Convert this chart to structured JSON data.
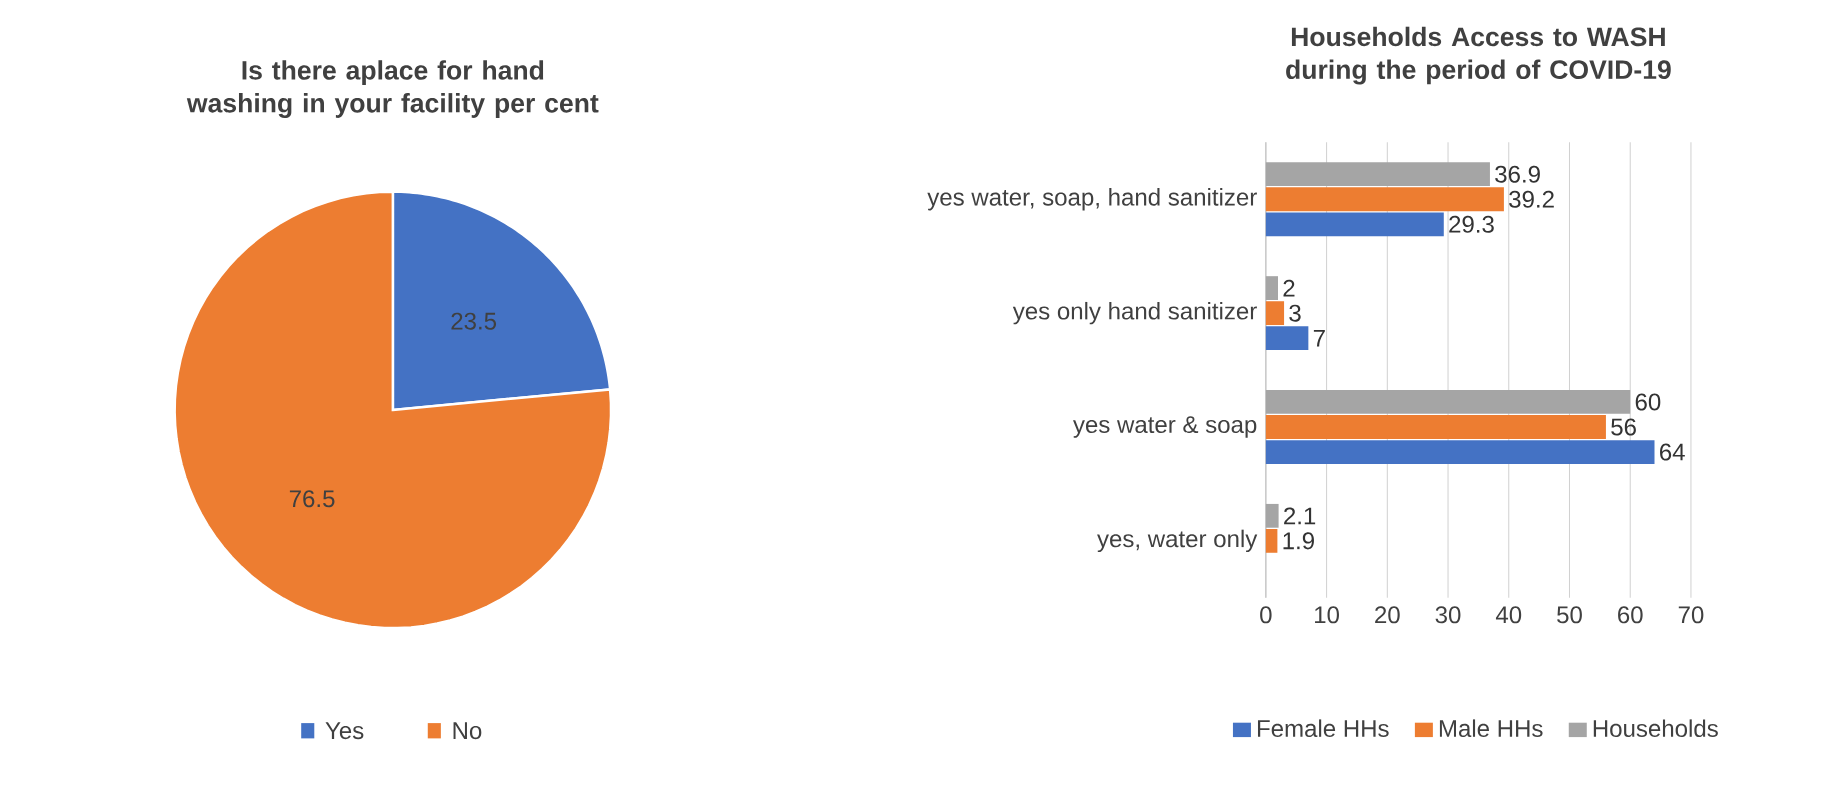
{
  "chart_data": [
    {
      "type": "pie",
      "title": "Is there aplace for hand washing in your facility per cent",
      "categories": [
        "Yes",
        "No"
      ],
      "values": [
        23.5,
        76.5
      ],
      "colors": [
        "#4472c4",
        "#ed7d31"
      ],
      "data_labels": true,
      "legend": "bottom"
    },
    {
      "type": "bar",
      "orientation": "horizontal",
      "title": "Households Access to WASH during the period of COVID-19",
      "categories": [
        "yes water, soap, hand sanitizer",
        "yes only hand sanitizer",
        "yes water & soap",
        "yes, water only"
      ],
      "series": [
        {
          "name": "Female HHs",
          "color": "#4472c4",
          "values": [
            29.3,
            7,
            64,
            null
          ]
        },
        {
          "name": "Male HHs",
          "color": "#ed7d31",
          "values": [
            39.2,
            3,
            56,
            1.9
          ]
        },
        {
          "name": "Households",
          "color": "#a5a5a5",
          "values": [
            36.9,
            2,
            60,
            2.1
          ]
        }
      ],
      "xlim": [
        0,
        70
      ],
      "xticks": [
        0,
        10,
        20,
        30,
        40,
        50,
        60,
        70
      ],
      "grid": "x",
      "legend": "bottom",
      "data_labels": true
    }
  ]
}
